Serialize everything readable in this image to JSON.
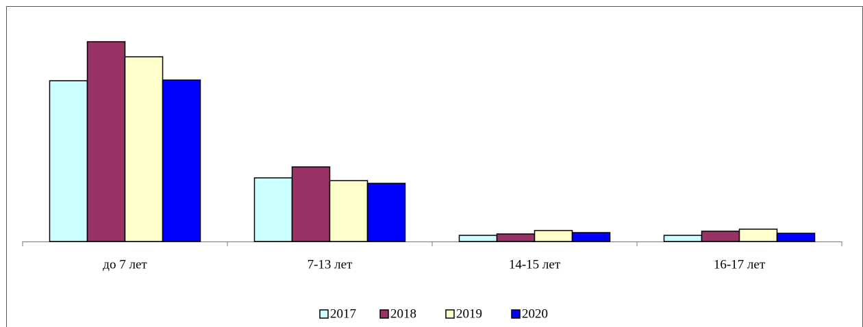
{
  "chart_data": {
    "type": "bar",
    "categories": [
      "до 7 лет",
      "7-13 лет",
      "14-15 лет",
      "16-17 лет"
    ],
    "series": [
      {
        "name": "2017",
        "color": "#ccffff",
        "values": [
          235,
          93,
          9,
          9
        ]
      },
      {
        "name": "2018",
        "color": "#993366",
        "values": [
          292,
          109,
          11,
          15
        ]
      },
      {
        "name": "2019",
        "color": "#ffffcc",
        "values": [
          270,
          89,
          16,
          18
        ]
      },
      {
        "name": "2020",
        "color": "#0000ff",
        "values": [
          236,
          85,
          13,
          12
        ]
      }
    ],
    "ylim": [
      0,
      300
    ],
    "legend": "bottom"
  }
}
